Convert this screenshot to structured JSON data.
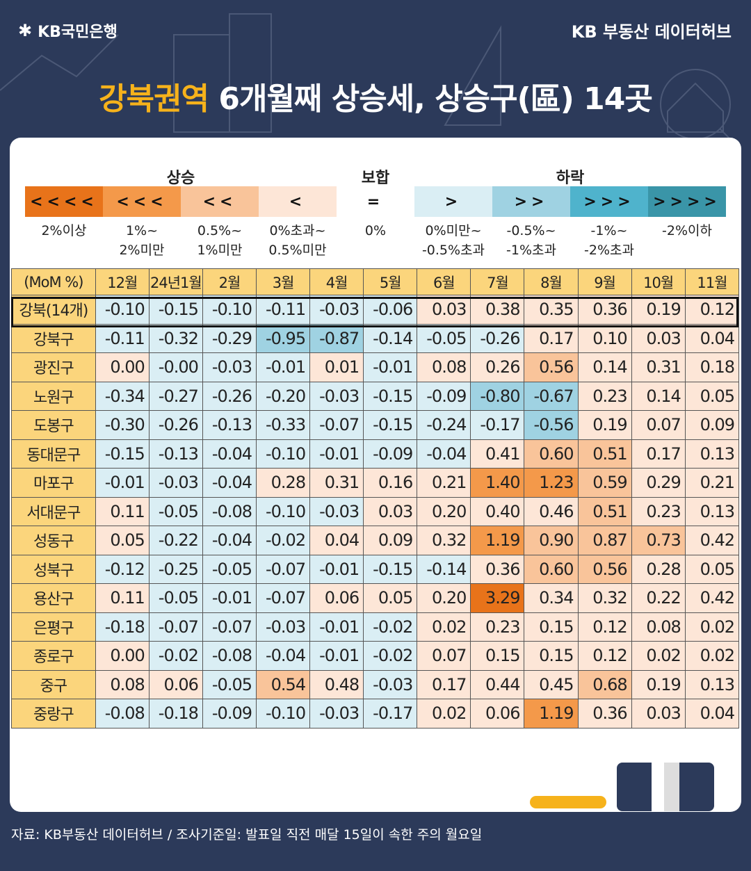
{
  "header": {
    "brand": "KB국민은행",
    "hub": "KB 부동산  데이터허브",
    "title_highlight": "강북권역",
    "title_rest": " 6개월째 상승세, 상승구(區) 14곳"
  },
  "legend": {
    "groups": [
      "상승",
      "보합",
      "하락"
    ],
    "items": [
      {
        "symbol": "<<<<",
        "desc1": "2%이상",
        "desc2": "",
        "color": "#e8731a"
      },
      {
        "symbol": "<<<",
        "desc1": "1%~",
        "desc2": "2%미만",
        "color": "#f4994a"
      },
      {
        "symbol": "<<",
        "desc1": "0.5%~",
        "desc2": "1%미만",
        "color": "#f9c49a"
      },
      {
        "symbol": "<",
        "desc1": "0%초과~",
        "desc2": "0.5%미만",
        "color": "#fde6d7"
      },
      {
        "symbol": "=",
        "desc1": "0%",
        "desc2": "",
        "color": "#ffffff"
      },
      {
        "symbol": ">",
        "desc1": "0%미만~",
        "desc2": "-0.5%초과",
        "color": "#daeef4"
      },
      {
        "symbol": ">>",
        "desc1": "-0.5%~",
        "desc2": "-1%초과",
        "color": "#9fd2e2"
      },
      {
        "symbol": ">>>",
        "desc1": "-1%~",
        "desc2": "-2%초과",
        "color": "#4fb3cc"
      },
      {
        "symbol": ">>>>",
        "desc1": "-2%이하",
        "desc2": "",
        "color": "#3a95a8"
      }
    ]
  },
  "chart_data": {
    "type": "table",
    "corner_label": "(MoM %)",
    "columns": [
      "12월",
      "24년1월",
      "2월",
      "3월",
      "4월",
      "5월",
      "6월",
      "7월",
      "8월",
      "9월",
      "10월",
      "11월"
    ],
    "rows": [
      {
        "name": "강북(14개)",
        "values": [
          "-0.10",
          "-0.15",
          "-0.10",
          "-0.11",
          "-0.03",
          "-0.06",
          "0.03",
          "0.38",
          "0.35",
          "0.36",
          "0.19",
          "0.12"
        ]
      },
      {
        "name": "강북구",
        "values": [
          "-0.11",
          "-0.32",
          "-0.29",
          "-0.95",
          "-0.87",
          "-0.14",
          "-0.05",
          "-0.26",
          "0.17",
          "0.10",
          "0.03",
          "0.04"
        ]
      },
      {
        "name": "광진구",
        "values": [
          "0.00",
          "-0.00",
          "-0.03",
          "-0.01",
          "0.01",
          "-0.01",
          "0.08",
          "0.26",
          "0.56",
          "0.14",
          "0.31",
          "0.18"
        ]
      },
      {
        "name": "노원구",
        "values": [
          "-0.34",
          "-0.27",
          "-0.26",
          "-0.20",
          "-0.03",
          "-0.15",
          "-0.09",
          "-0.80",
          "-0.67",
          "0.23",
          "0.14",
          "0.05"
        ]
      },
      {
        "name": "도봉구",
        "values": [
          "-0.30",
          "-0.26",
          "-0.13",
          "-0.33",
          "-0.07",
          "-0.15",
          "-0.24",
          "-0.17",
          "-0.56",
          "0.19",
          "0.07",
          "0.09"
        ]
      },
      {
        "name": "동대문구",
        "values": [
          "-0.15",
          "-0.13",
          "-0.04",
          "-0.10",
          "-0.01",
          "-0.09",
          "-0.04",
          "0.41",
          "0.60",
          "0.51",
          "0.17",
          "0.13"
        ]
      },
      {
        "name": "마포구",
        "values": [
          "-0.01",
          "-0.03",
          "-0.04",
          "0.28",
          "0.31",
          "0.16",
          "0.21",
          "1.40",
          "1.23",
          "0.59",
          "0.29",
          "0.21"
        ]
      },
      {
        "name": "서대문구",
        "values": [
          "0.11",
          "-0.05",
          "-0.08",
          "-0.10",
          "-0.03",
          "0.03",
          "0.20",
          "0.40",
          "0.46",
          "0.51",
          "0.23",
          "0.13"
        ]
      },
      {
        "name": "성동구",
        "values": [
          "0.05",
          "-0.22",
          "-0.04",
          "-0.02",
          "0.04",
          "0.09",
          "0.32",
          "1.19",
          "0.90",
          "0.87",
          "0.73",
          "0.42"
        ]
      },
      {
        "name": "성북구",
        "values": [
          "-0.12",
          "-0.25",
          "-0.05",
          "-0.07",
          "-0.01",
          "-0.15",
          "-0.14",
          "0.36",
          "0.60",
          "0.56",
          "0.28",
          "0.05"
        ]
      },
      {
        "name": "용산구",
        "values": [
          "0.11",
          "-0.05",
          "-0.01",
          "-0.07",
          "0.06",
          "0.05",
          "0.20",
          "3.29",
          "0.34",
          "0.32",
          "0.22",
          "0.42"
        ]
      },
      {
        "name": "은평구",
        "values": [
          "-0.18",
          "-0.07",
          "-0.07",
          "-0.03",
          "-0.01",
          "-0.02",
          "0.02",
          "0.23",
          "0.15",
          "0.12",
          "0.08",
          "0.02"
        ]
      },
      {
        "name": "종로구",
        "values": [
          "0.00",
          "-0.02",
          "-0.08",
          "-0.04",
          "-0.01",
          "-0.02",
          "0.07",
          "0.15",
          "0.15",
          "0.12",
          "0.02",
          "0.02"
        ]
      },
      {
        "name": "중구",
        "values": [
          "0.08",
          "0.06",
          "-0.05",
          "0.54",
          "0.48",
          "-0.03",
          "0.17",
          "0.44",
          "0.45",
          "0.68",
          "0.19",
          "0.13"
        ]
      },
      {
        "name": "중랑구",
        "values": [
          "-0.08",
          "-0.18",
          "-0.09",
          "-0.10",
          "-0.03",
          "-0.17",
          "0.02",
          "0.06",
          "1.19",
          "0.36",
          "0.03",
          "0.04"
        ]
      }
    ]
  },
  "footer": {
    "source": "자료: KB부동산 데이터허브 / 조사기준일: 발표일 직전 매달 15일이 속한 주의 월요일"
  }
}
